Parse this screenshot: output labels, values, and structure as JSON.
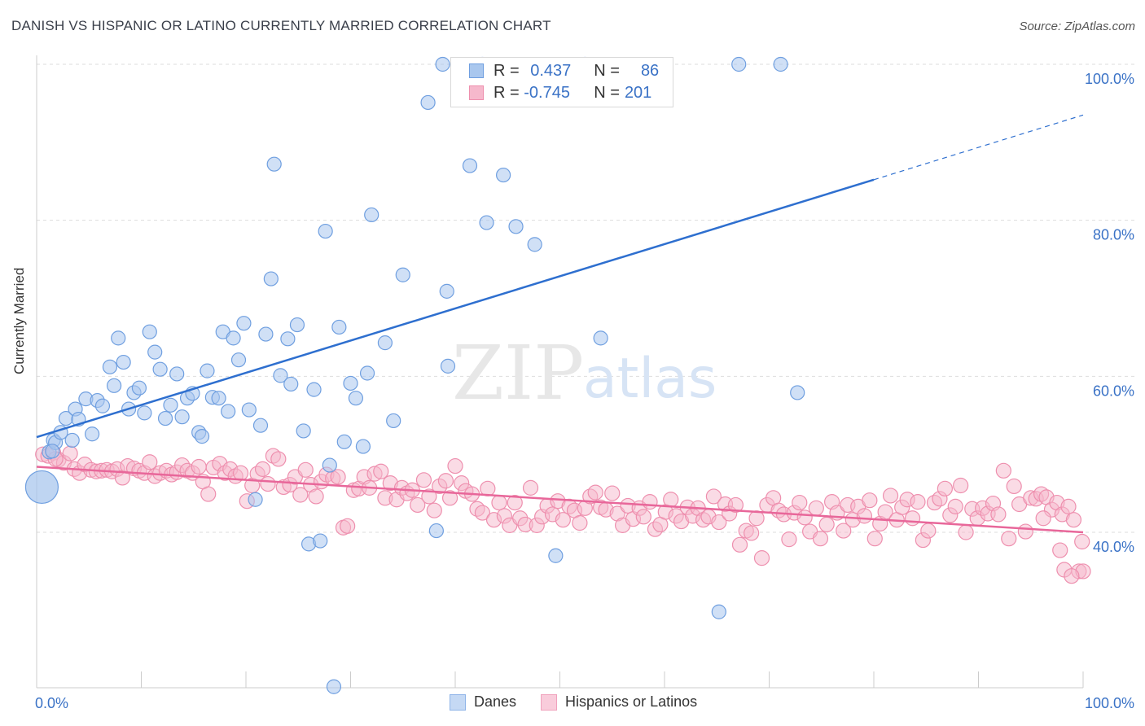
{
  "header": {
    "title": "DANISH VS HISPANIC OR LATINO CURRENTLY MARRIED CORRELATION CHART",
    "source": "Source: ZipAtlas.com"
  },
  "watermark": {
    "zip": "ZIP",
    "atlas": "atlas"
  },
  "legend": {
    "danes": {
      "r_label": "R =",
      "r_value": "0.437",
      "n_label": "N =",
      "n_value": "86"
    },
    "hispanics": {
      "r_label": "R =",
      "r_value": "-0.745",
      "n_label": "N =",
      "n_value": "201"
    }
  },
  "bottom_legend": {
    "danes": "Danes",
    "hispanics": "Hispanics or Latinos"
  },
  "colors": {
    "danes_fill": "#a9c7ee",
    "danes_stroke": "#6f9fe0",
    "danes_line": "#2e6fcf",
    "hisp_fill": "#f6b8cc",
    "hisp_stroke": "#ee8fae",
    "hisp_line": "#e8679a",
    "tick": "#3a72c6",
    "grid": "#dddddd"
  },
  "chart_data": {
    "type": "scatter",
    "title": "DANISH VS HISPANIC OR LATINO CURRENTLY MARRIED CORRELATION CHART",
    "xlabel": "",
    "ylabel": "Currently Married",
    "xlim": [
      0,
      100
    ],
    "ylim": [
      20,
      101
    ],
    "x_tick_labels": [
      "0.0%",
      "100.0%"
    ],
    "y_ticks": [
      40,
      60,
      80,
      100
    ],
    "y_tick_labels": [
      "40.0%",
      "60.0%",
      "80.0%",
      "100.0%"
    ],
    "grid": true,
    "legend_position": "top-center",
    "series": [
      {
        "name": "Danes",
        "r": 0.437,
        "n": 86,
        "trend": {
          "x0": 0,
          "y0": 52.2,
          "x1": 80,
          "y1": 85.2,
          "dashed_to_x": 100,
          "dashed_to_y": 93.5
        },
        "points": [
          [
            0.5,
            45.8
          ],
          [
            1.2,
            50.3
          ],
          [
            1.6,
            51.8
          ],
          [
            1.8,
            51.5
          ],
          [
            2.3,
            52.8
          ],
          [
            2.8,
            54.6
          ],
          [
            3.4,
            51.8
          ],
          [
            3.7,
            55.8
          ],
          [
            4.0,
            54.5
          ],
          [
            4.7,
            57.1
          ],
          [
            5.3,
            52.6
          ],
          [
            5.8,
            56.9
          ],
          [
            6.3,
            56.2
          ],
          [
            7.0,
            61.2
          ],
          [
            7.4,
            58.8
          ],
          [
            7.8,
            64.9
          ],
          [
            8.3,
            61.8
          ],
          [
            8.8,
            55.8
          ],
          [
            9.3,
            57.9
          ],
          [
            9.8,
            58.5
          ],
          [
            10.3,
            55.3
          ],
          [
            10.8,
            65.7
          ],
          [
            11.3,
            63.1
          ],
          [
            11.8,
            60.9
          ],
          [
            12.3,
            54.6
          ],
          [
            12.8,
            56.3
          ],
          [
            13.4,
            60.3
          ],
          [
            13.9,
            54.8
          ],
          [
            14.4,
            57.2
          ],
          [
            14.9,
            57.8
          ],
          [
            15.5,
            52.8
          ],
          [
            15.8,
            52.3
          ],
          [
            16.3,
            60.7
          ],
          [
            16.8,
            57.3
          ],
          [
            17.4,
            57.2
          ],
          [
            17.8,
            65.7
          ],
          [
            18.3,
            55.5
          ],
          [
            18.8,
            64.9
          ],
          [
            19.3,
            62.1
          ],
          [
            19.8,
            66.8
          ],
          [
            20.3,
            55.7
          ],
          [
            20.9,
            44.2
          ],
          [
            21.4,
            53.7
          ],
          [
            21.9,
            65.4
          ],
          [
            22.4,
            72.5
          ],
          [
            22.7,
            87.2
          ],
          [
            23.3,
            60.1
          ],
          [
            24.0,
            64.8
          ],
          [
            24.3,
            59.0
          ],
          [
            24.9,
            66.6
          ],
          [
            25.5,
            53.0
          ],
          [
            26.0,
            38.5
          ],
          [
            26.5,
            58.3
          ],
          [
            27.1,
            38.9
          ],
          [
            27.6,
            78.6
          ],
          [
            28.0,
            48.6
          ],
          [
            28.4,
            20.2
          ],
          [
            28.9,
            66.3
          ],
          [
            29.4,
            51.6
          ],
          [
            30.0,
            59.1
          ],
          [
            30.5,
            57.2
          ],
          [
            31.2,
            51.0
          ],
          [
            31.6,
            60.4
          ],
          [
            32.0,
            80.7
          ],
          [
            33.3,
            64.3
          ],
          [
            34.1,
            54.3
          ],
          [
            35.0,
            73.0
          ],
          [
            37.4,
            95.1
          ],
          [
            38.2,
            40.2
          ],
          [
            38.8,
            100.0
          ],
          [
            39.2,
            70.9
          ],
          [
            39.3,
            61.3
          ],
          [
            41.4,
            87.0
          ],
          [
            42.6,
            100.0
          ],
          [
            43.0,
            79.7
          ],
          [
            44.6,
            85.8
          ],
          [
            45.8,
            79.2
          ],
          [
            47.6,
            76.9
          ],
          [
            49.6,
            37.0
          ],
          [
            52.4,
            100.0
          ],
          [
            53.9,
            64.9
          ],
          [
            65.2,
            29.8
          ],
          [
            67.1,
            100.0
          ],
          [
            71.1,
            100.0
          ],
          [
            72.7,
            57.9
          ],
          [
            1.5,
            50.4
          ]
        ]
      },
      {
        "name": "Hispanics or Latinos",
        "r": -0.745,
        "n": 201,
        "trend": {
          "x0": 0,
          "y0": 48.4,
          "x1": 100,
          "y1": 40.0
        },
        "points": [
          [
            0.6,
            50.0
          ],
          [
            1.1,
            49.8
          ],
          [
            1.6,
            50.2
          ],
          [
            2.1,
            49.3
          ],
          [
            2.6,
            48.9
          ],
          [
            3.2,
            50.1
          ],
          [
            3.6,
            48.1
          ],
          [
            4.1,
            47.6
          ],
          [
            4.6,
            48.7
          ],
          [
            5.2,
            48.0
          ],
          [
            5.7,
            47.8
          ],
          [
            6.2,
            47.9
          ],
          [
            6.7,
            48.0
          ],
          [
            7.2,
            47.8
          ],
          [
            7.7,
            48.1
          ],
          [
            8.2,
            47.0
          ],
          [
            8.7,
            48.5
          ],
          [
            9.3,
            48.2
          ],
          [
            9.8,
            47.9
          ],
          [
            10.3,
            47.6
          ],
          [
            10.8,
            49.0
          ],
          [
            11.3,
            47.2
          ],
          [
            11.8,
            47.6
          ],
          [
            12.4,
            47.9
          ],
          [
            12.9,
            47.4
          ],
          [
            13.4,
            47.7
          ],
          [
            13.9,
            48.6
          ],
          [
            14.4,
            47.9
          ],
          [
            14.9,
            47.6
          ],
          [
            15.5,
            48.4
          ],
          [
            15.9,
            46.5
          ],
          [
            16.4,
            44.9
          ],
          [
            16.9,
            48.3
          ],
          [
            17.5,
            48.8
          ],
          [
            18.0,
            47.6
          ],
          [
            18.5,
            48.1
          ],
          [
            19.0,
            47.2
          ],
          [
            19.5,
            47.6
          ],
          [
            20.1,
            44.0
          ],
          [
            20.6,
            46.0
          ],
          [
            21.1,
            47.5
          ],
          [
            21.6,
            48.1
          ],
          [
            22.1,
            46.2
          ],
          [
            22.6,
            49.8
          ],
          [
            23.1,
            49.4
          ],
          [
            23.6,
            45.8
          ],
          [
            24.2,
            46.1
          ],
          [
            24.7,
            47.1
          ],
          [
            25.2,
            44.8
          ],
          [
            25.7,
            48.0
          ],
          [
            26.2,
            46.1
          ],
          [
            26.7,
            44.6
          ],
          [
            27.2,
            46.5
          ],
          [
            27.7,
            47.4
          ],
          [
            28.3,
            46.9
          ],
          [
            28.8,
            47.1
          ],
          [
            29.3,
            40.6
          ],
          [
            29.7,
            40.8
          ],
          [
            30.3,
            45.4
          ],
          [
            30.8,
            45.6
          ],
          [
            31.3,
            47.1
          ],
          [
            31.8,
            45.7
          ],
          [
            32.3,
            47.5
          ],
          [
            32.9,
            47.8
          ],
          [
            33.3,
            44.4
          ],
          [
            33.8,
            46.3
          ],
          [
            34.4,
            44.2
          ],
          [
            34.9,
            45.7
          ],
          [
            35.4,
            45.0
          ],
          [
            35.9,
            45.4
          ],
          [
            36.4,
            43.5
          ],
          [
            37.0,
            46.7
          ],
          [
            37.5,
            44.6
          ],
          [
            38.0,
            42.8
          ],
          [
            38.5,
            45.9
          ],
          [
            39.1,
            46.6
          ],
          [
            39.5,
            44.4
          ],
          [
            40.0,
            48.5
          ],
          [
            40.6,
            46.3
          ],
          [
            41.0,
            45.3
          ],
          [
            41.6,
            44.9
          ],
          [
            42.1,
            43.0
          ],
          [
            42.6,
            42.5
          ],
          [
            43.1,
            45.6
          ],
          [
            43.7,
            41.6
          ],
          [
            44.2,
            43.8
          ],
          [
            44.7,
            42.1
          ],
          [
            45.2,
            40.9
          ],
          [
            45.7,
            43.8
          ],
          [
            46.2,
            41.8
          ],
          [
            46.7,
            41.0
          ],
          [
            47.2,
            45.7
          ],
          [
            47.8,
            40.9
          ],
          [
            48.3,
            42.0
          ],
          [
            48.8,
            43.4
          ],
          [
            49.3,
            42.3
          ],
          [
            49.8,
            44.0
          ],
          [
            50.3,
            41.6
          ],
          [
            50.9,
            43.3
          ],
          [
            51.4,
            42.8
          ],
          [
            51.9,
            41.2
          ],
          [
            52.4,
            43.1
          ],
          [
            52.9,
            44.6
          ],
          [
            53.4,
            45.1
          ],
          [
            53.9,
            43.2
          ],
          [
            54.4,
            42.9
          ],
          [
            55.0,
            45.0
          ],
          [
            55.5,
            42.4
          ],
          [
            56.0,
            40.9
          ],
          [
            56.5,
            43.4
          ],
          [
            57.0,
            41.7
          ],
          [
            57.6,
            43.1
          ],
          [
            58.0,
            42.0
          ],
          [
            58.6,
            43.9
          ],
          [
            59.1,
            40.4
          ],
          [
            59.6,
            41.0
          ],
          [
            60.1,
            42.6
          ],
          [
            60.6,
            44.2
          ],
          [
            61.1,
            42.1
          ],
          [
            61.6,
            41.4
          ],
          [
            62.2,
            43.2
          ],
          [
            62.7,
            42.1
          ],
          [
            63.2,
            43.1
          ],
          [
            63.7,
            41.6
          ],
          [
            64.2,
            42.0
          ],
          [
            64.7,
            44.6
          ],
          [
            65.2,
            41.3
          ],
          [
            65.8,
            43.6
          ],
          [
            66.2,
            42.4
          ],
          [
            66.8,
            43.5
          ],
          [
            67.2,
            38.4
          ],
          [
            67.8,
            40.2
          ],
          [
            68.3,
            39.9
          ],
          [
            68.8,
            41.8
          ],
          [
            69.3,
            36.7
          ],
          [
            69.8,
            43.5
          ],
          [
            70.4,
            44.4
          ],
          [
            70.9,
            42.8
          ],
          [
            71.4,
            42.3
          ],
          [
            71.9,
            39.1
          ],
          [
            72.4,
            42.5
          ],
          [
            72.9,
            43.8
          ],
          [
            73.4,
            41.9
          ],
          [
            73.9,
            40.1
          ],
          [
            74.5,
            43.1
          ],
          [
            74.9,
            39.2
          ],
          [
            75.5,
            41.0
          ],
          [
            76.0,
            43.9
          ],
          [
            76.5,
            42.5
          ],
          [
            77.1,
            40.2
          ],
          [
            77.5,
            43.5
          ],
          [
            78.0,
            41.6
          ],
          [
            78.5,
            43.3
          ],
          [
            79.1,
            42.1
          ],
          [
            79.6,
            44.1
          ],
          [
            80.1,
            39.2
          ],
          [
            80.6,
            41.1
          ],
          [
            81.1,
            42.6
          ],
          [
            81.6,
            44.7
          ],
          [
            82.2,
            41.6
          ],
          [
            82.7,
            43.2
          ],
          [
            83.2,
            44.2
          ],
          [
            83.7,
            41.8
          ],
          [
            84.2,
            43.9
          ],
          [
            84.7,
            39.0
          ],
          [
            85.2,
            40.2
          ],
          [
            85.8,
            43.8
          ],
          [
            86.3,
            44.3
          ],
          [
            86.8,
            45.6
          ],
          [
            87.3,
            42.2
          ],
          [
            87.8,
            43.3
          ],
          [
            88.3,
            46.0
          ],
          [
            88.8,
            40.0
          ],
          [
            89.4,
            43.0
          ],
          [
            89.9,
            41.8
          ],
          [
            90.4,
            43.1
          ],
          [
            90.9,
            42.4
          ],
          [
            91.4,
            43.7
          ],
          [
            91.9,
            42.3
          ],
          [
            92.4,
            47.9
          ],
          [
            92.9,
            39.2
          ],
          [
            93.4,
            45.9
          ],
          [
            93.9,
            43.6
          ],
          [
            94.5,
            40.1
          ],
          [
            95.0,
            44.4
          ],
          [
            95.5,
            44.3
          ],
          [
            96.0,
            44.9
          ],
          [
            96.5,
            44.5
          ],
          [
            97.0,
            42.9
          ],
          [
            97.5,
            43.8
          ],
          [
            98.0,
            42.3
          ],
          [
            98.6,
            43.3
          ],
          [
            99.1,
            41.6
          ],
          [
            99.6,
            35.0
          ],
          [
            99.9,
            38.8
          ],
          [
            100.0,
            35.0
          ],
          [
            98.2,
            35.2
          ],
          [
            98.9,
            34.4
          ],
          [
            97.8,
            37.7
          ],
          [
            96.2,
            41.8
          ],
          [
            1.8,
            49.4
          ]
        ]
      }
    ]
  }
}
